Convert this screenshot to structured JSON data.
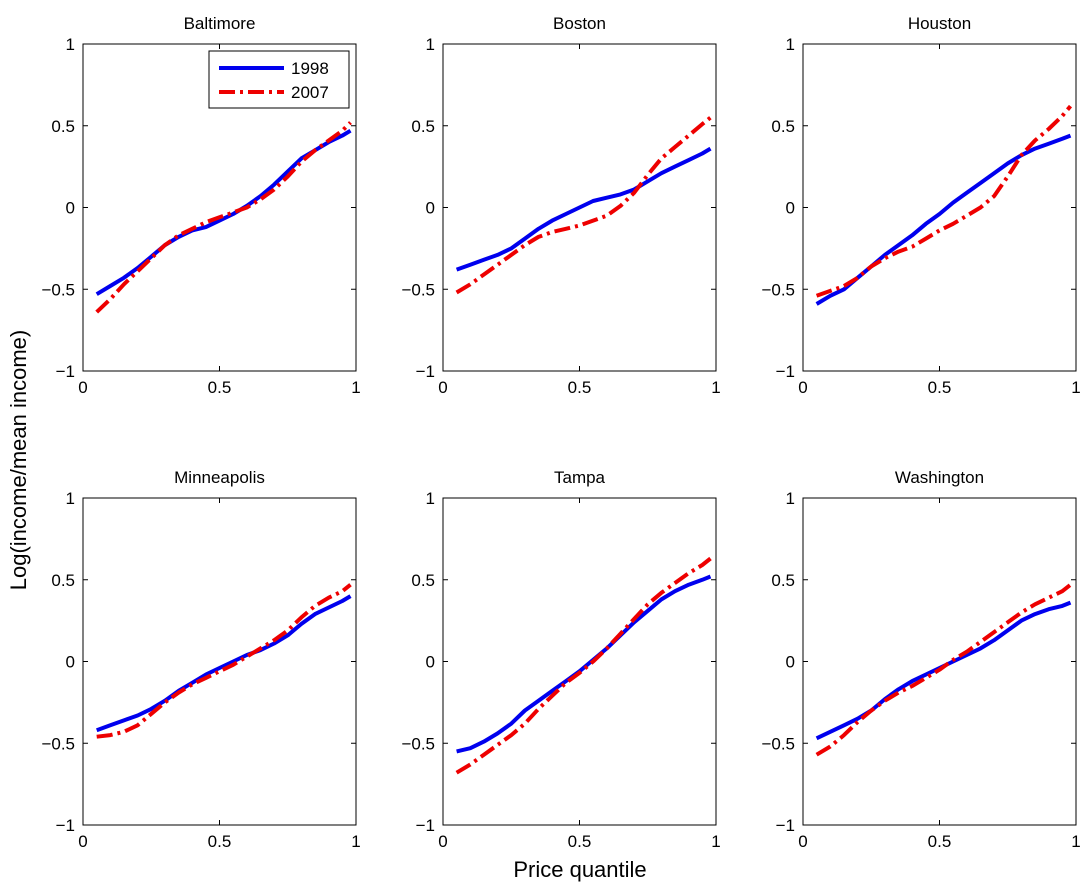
{
  "figure": {
    "xlabel": "Price quantile",
    "ylabel": "Log(income/mean income)"
  },
  "legend": {
    "entries": [
      {
        "label": "1998",
        "color": "#0000ee",
        "style": "solid"
      },
      {
        "label": "2007",
        "color": "#ee0000",
        "style": "dashdot"
      }
    ],
    "placement": "top-right of first panel"
  },
  "chart_data": [
    {
      "type": "line",
      "title": "Baltimore",
      "xlim": [
        0,
        1
      ],
      "ylim": [
        -1,
        1
      ],
      "xticks": [
        0,
        0.5,
        1
      ],
      "yticks": [
        -1,
        -0.5,
        0,
        0.5,
        1
      ],
      "series": [
        {
          "name": "1998",
          "x": [
            0.05,
            0.1,
            0.15,
            0.2,
            0.25,
            0.3,
            0.35,
            0.4,
            0.45,
            0.5,
            0.55,
            0.6,
            0.65,
            0.7,
            0.75,
            0.8,
            0.85,
            0.9,
            0.95,
            0.98
          ],
          "y": [
            -0.53,
            -0.48,
            -0.43,
            -0.37,
            -0.3,
            -0.23,
            -0.18,
            -0.14,
            -0.12,
            -0.08,
            -0.04,
            0.01,
            0.07,
            0.14,
            0.22,
            0.3,
            0.35,
            0.4,
            0.44,
            0.47
          ]
        },
        {
          "name": "2007",
          "x": [
            0.05,
            0.1,
            0.15,
            0.2,
            0.25,
            0.3,
            0.35,
            0.4,
            0.45,
            0.5,
            0.55,
            0.6,
            0.65,
            0.7,
            0.75,
            0.8,
            0.85,
            0.9,
            0.95,
            0.98
          ],
          "y": [
            -0.64,
            -0.56,
            -0.47,
            -0.39,
            -0.31,
            -0.23,
            -0.17,
            -0.13,
            -0.09,
            -0.06,
            -0.03,
            0.0,
            0.05,
            0.11,
            0.19,
            0.28,
            0.35,
            0.41,
            0.47,
            0.52
          ]
        }
      ]
    },
    {
      "type": "line",
      "title": "Boston",
      "xlim": [
        0,
        1
      ],
      "ylim": [
        -1,
        1
      ],
      "xticks": [
        0,
        0.5,
        1
      ],
      "yticks": [
        -1,
        -0.5,
        0,
        0.5,
        1
      ],
      "series": [
        {
          "name": "1998",
          "x": [
            0.05,
            0.1,
            0.15,
            0.2,
            0.25,
            0.3,
            0.35,
            0.4,
            0.45,
            0.5,
            0.55,
            0.6,
            0.65,
            0.7,
            0.75,
            0.8,
            0.85,
            0.9,
            0.95,
            0.98
          ],
          "y": [
            -0.38,
            -0.35,
            -0.32,
            -0.29,
            -0.25,
            -0.19,
            -0.13,
            -0.08,
            -0.04,
            0.0,
            0.04,
            0.06,
            0.08,
            0.11,
            0.16,
            0.21,
            0.25,
            0.29,
            0.33,
            0.36
          ]
        },
        {
          "name": "2007",
          "x": [
            0.05,
            0.1,
            0.15,
            0.2,
            0.25,
            0.3,
            0.35,
            0.4,
            0.45,
            0.5,
            0.55,
            0.6,
            0.65,
            0.7,
            0.75,
            0.8,
            0.85,
            0.9,
            0.95,
            0.98
          ],
          "y": [
            -0.52,
            -0.47,
            -0.41,
            -0.35,
            -0.29,
            -0.23,
            -0.18,
            -0.15,
            -0.13,
            -0.11,
            -0.08,
            -0.05,
            0.01,
            0.09,
            0.2,
            0.3,
            0.37,
            0.44,
            0.51,
            0.55
          ]
        }
      ]
    },
    {
      "type": "line",
      "title": "Houston",
      "xlim": [
        0,
        1
      ],
      "ylim": [
        -1,
        1
      ],
      "xticks": [
        0,
        0.5,
        1
      ],
      "yticks": [
        -1,
        -0.5,
        0,
        0.5,
        1
      ],
      "series": [
        {
          "name": "1998",
          "x": [
            0.05,
            0.1,
            0.15,
            0.2,
            0.25,
            0.3,
            0.35,
            0.4,
            0.45,
            0.5,
            0.55,
            0.6,
            0.65,
            0.7,
            0.75,
            0.8,
            0.85,
            0.9,
            0.95,
            0.98
          ],
          "y": [
            -0.59,
            -0.54,
            -0.5,
            -0.43,
            -0.36,
            -0.29,
            -0.23,
            -0.17,
            -0.1,
            -0.04,
            0.03,
            0.09,
            0.15,
            0.21,
            0.27,
            0.32,
            0.36,
            0.39,
            0.42,
            0.44
          ]
        },
        {
          "name": "2007",
          "x": [
            0.05,
            0.1,
            0.15,
            0.2,
            0.25,
            0.3,
            0.35,
            0.4,
            0.45,
            0.5,
            0.55,
            0.6,
            0.65,
            0.7,
            0.75,
            0.8,
            0.85,
            0.9,
            0.95,
            0.98
          ],
          "y": [
            -0.54,
            -0.51,
            -0.48,
            -0.43,
            -0.36,
            -0.31,
            -0.27,
            -0.24,
            -0.19,
            -0.14,
            -0.1,
            -0.05,
            0.0,
            0.07,
            0.19,
            0.32,
            0.41,
            0.48,
            0.56,
            0.62
          ]
        }
      ]
    },
    {
      "type": "line",
      "title": "Minneapolis",
      "xlim": [
        0,
        1
      ],
      "ylim": [
        -1,
        1
      ],
      "xticks": [
        0,
        0.5,
        1
      ],
      "yticks": [
        -1,
        -0.5,
        0,
        0.5,
        1
      ],
      "series": [
        {
          "name": "1998",
          "x": [
            0.05,
            0.1,
            0.15,
            0.2,
            0.25,
            0.3,
            0.35,
            0.4,
            0.45,
            0.5,
            0.55,
            0.6,
            0.65,
            0.7,
            0.75,
            0.8,
            0.85,
            0.9,
            0.95,
            0.98
          ],
          "y": [
            -0.42,
            -0.39,
            -0.36,
            -0.33,
            -0.29,
            -0.24,
            -0.18,
            -0.13,
            -0.08,
            -0.04,
            0.0,
            0.04,
            0.07,
            0.11,
            0.16,
            0.23,
            0.29,
            0.33,
            0.37,
            0.4
          ]
        },
        {
          "name": "2007",
          "x": [
            0.05,
            0.1,
            0.15,
            0.2,
            0.25,
            0.3,
            0.35,
            0.4,
            0.45,
            0.5,
            0.55,
            0.6,
            0.65,
            0.7,
            0.75,
            0.8,
            0.85,
            0.9,
            0.95,
            0.98
          ],
          "y": [
            -0.46,
            -0.45,
            -0.43,
            -0.39,
            -0.32,
            -0.25,
            -0.19,
            -0.14,
            -0.1,
            -0.06,
            -0.02,
            0.03,
            0.08,
            0.13,
            0.19,
            0.27,
            0.34,
            0.39,
            0.43,
            0.47
          ]
        }
      ]
    },
    {
      "type": "line",
      "title": "Tampa",
      "xlim": [
        0,
        1
      ],
      "ylim": [
        -1,
        1
      ],
      "xticks": [
        0,
        0.5,
        1
      ],
      "yticks": [
        -1,
        -0.5,
        0,
        0.5,
        1
      ],
      "series": [
        {
          "name": "1998",
          "x": [
            0.05,
            0.1,
            0.15,
            0.2,
            0.25,
            0.3,
            0.35,
            0.4,
            0.45,
            0.5,
            0.55,
            0.6,
            0.65,
            0.7,
            0.75,
            0.8,
            0.85,
            0.9,
            0.95,
            0.98
          ],
          "y": [
            -0.55,
            -0.53,
            -0.49,
            -0.44,
            -0.38,
            -0.3,
            -0.24,
            -0.18,
            -0.12,
            -0.06,
            0.01,
            0.08,
            0.16,
            0.24,
            0.31,
            0.38,
            0.43,
            0.47,
            0.5,
            0.52
          ]
        },
        {
          "name": "2007",
          "x": [
            0.05,
            0.1,
            0.15,
            0.2,
            0.25,
            0.3,
            0.35,
            0.4,
            0.45,
            0.5,
            0.55,
            0.6,
            0.65,
            0.7,
            0.75,
            0.8,
            0.85,
            0.9,
            0.95,
            0.98
          ],
          "y": [
            -0.68,
            -0.63,
            -0.57,
            -0.51,
            -0.45,
            -0.38,
            -0.29,
            -0.21,
            -0.13,
            -0.07,
            0.0,
            0.08,
            0.17,
            0.26,
            0.35,
            0.42,
            0.48,
            0.54,
            0.59,
            0.63
          ]
        }
      ]
    },
    {
      "type": "line",
      "title": "Washington",
      "xlim": [
        0,
        1
      ],
      "ylim": [
        -1,
        1
      ],
      "xticks": [
        0,
        0.5,
        1
      ],
      "yticks": [
        -1,
        -0.5,
        0,
        0.5,
        1
      ],
      "series": [
        {
          "name": "1998",
          "x": [
            0.05,
            0.1,
            0.15,
            0.2,
            0.25,
            0.3,
            0.35,
            0.4,
            0.45,
            0.5,
            0.55,
            0.6,
            0.65,
            0.7,
            0.75,
            0.8,
            0.85,
            0.9,
            0.95,
            0.98
          ],
          "y": [
            -0.47,
            -0.43,
            -0.39,
            -0.35,
            -0.3,
            -0.23,
            -0.17,
            -0.12,
            -0.08,
            -0.04,
            0.0,
            0.04,
            0.08,
            0.13,
            0.19,
            0.25,
            0.29,
            0.32,
            0.34,
            0.36
          ]
        },
        {
          "name": "2007",
          "x": [
            0.05,
            0.1,
            0.15,
            0.2,
            0.25,
            0.3,
            0.35,
            0.4,
            0.45,
            0.5,
            0.55,
            0.6,
            0.65,
            0.7,
            0.75,
            0.8,
            0.85,
            0.9,
            0.95,
            0.98
          ],
          "y": [
            -0.57,
            -0.52,
            -0.45,
            -0.37,
            -0.3,
            -0.24,
            -0.19,
            -0.15,
            -0.1,
            -0.05,
            0.01,
            0.06,
            0.12,
            0.18,
            0.24,
            0.3,
            0.35,
            0.39,
            0.43,
            0.47
          ]
        }
      ]
    }
  ]
}
